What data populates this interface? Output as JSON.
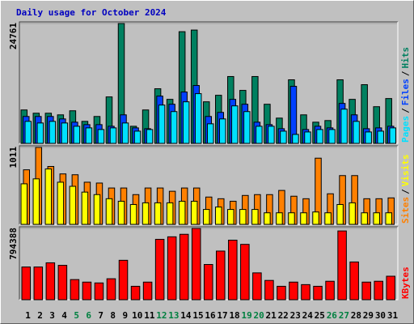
{
  "chart_data": [
    {
      "type": "bar",
      "title": "Daily usage for October 2024",
      "ylim": [
        0,
        24761
      ],
      "yticks": [
        24761
      ],
      "legend_reversed": true,
      "separator": "/",
      "series": [
        {
          "name": "Hits",
          "color": "#008060",
          "values": [
            6905,
            6231,
            6231,
            5894,
            6736,
            4547,
            5557,
            9599,
            24761,
            3536,
            6905,
            11283,
            9094,
            23071,
            23408,
            8588,
            9936,
            13809,
            10946,
            13809,
            8083,
            5220,
            13135,
            5894,
            4378,
            4715,
            13135,
            9094,
            12125,
            7578,
            9262
          ]
        },
        {
          "name": "Files",
          "color": "#0040ff",
          "values": [
            5557,
            5557,
            5557,
            5052,
            4378,
            3873,
            3873,
            3536,
            5894,
            3200,
            3031,
            9767,
            8083,
            10609,
            11956,
            5557,
            6399,
            9094,
            8083,
            4378,
            3873,
            3031,
            11788,
            2863,
            3536,
            3200,
            8252,
            5894,
            3031,
            3200,
            3536
          ]
        },
        {
          "name": "Pages",
          "color": "#00e0ff",
          "values": [
            4547,
            4210,
            4547,
            4210,
            3536,
            3200,
            2863,
            3200,
            4210,
            2526,
            2863,
            7915,
            6568,
            8588,
            10272,
            4042,
            5052,
            7746,
            6568,
            3536,
            3536,
            2526,
            1852,
            2358,
            2863,
            2863,
            7073,
            4547,
            2358,
            2526,
            3200
          ]
        }
      ]
    },
    {
      "type": "bar",
      "ylim": [
        0,
        1011
      ],
      "yticks": [
        1011
      ],
      "legend_reversed": false,
      "separator": "/",
      "series": [
        {
          "name": "Sites",
          "color": "#ff8000",
          "values": [
            717,
            1011,
            761,
            663,
            652,
            554,
            543,
            478,
            478,
            391,
            478,
            478,
            435,
            478,
            478,
            359,
            337,
            304,
            380,
            391,
            391,
            446,
            370,
            337,
            870,
            402,
            641,
            641,
            337,
            337,
            348
          ]
        },
        {
          "name": "Visits",
          "color": "#ffff00",
          "values": [
            533,
            598,
            728,
            554,
            500,
            424,
            391,
            337,
            304,
            261,
            283,
            283,
            283,
            304,
            304,
            196,
            228,
            196,
            196,
            196,
            152,
            152,
            152,
            152,
            163,
            152,
            261,
            283,
            152,
            152,
            152
          ]
        }
      ]
    },
    {
      "type": "bar",
      "ylim": [
        0,
        794388
      ],
      "yticks": [
        794388
      ],
      "legend_reversed": false,
      "categories": [
        1,
        2,
        3,
        4,
        5,
        6,
        7,
        8,
        9,
        10,
        11,
        12,
        13,
        14,
        15,
        16,
        17,
        18,
        19,
        20,
        21,
        22,
        23,
        24,
        25,
        26,
        27,
        28,
        29,
        30,
        31
      ],
      "category_colors": [
        "#000000",
        "#000000",
        "#000000",
        "#000000",
        "#008040",
        "#008040",
        "#000000",
        "#000000",
        "#000000",
        "#000000",
        "#000000",
        "#008040",
        "#008040",
        "#000000",
        "#000000",
        "#000000",
        "#000000",
        "#000000",
        "#008040",
        "#008040",
        "#000000",
        "#000000",
        "#000000",
        "#000000",
        "#000000",
        "#008040",
        "#008040",
        "#000000",
        "#000000",
        "#000000",
        "#000000"
      ],
      "series": [
        {
          "name": "KBytes",
          "color": "#ff0000",
          "values": [
            364494,
            364494,
            411224,
            383186,
            224304,
            196266,
            186920,
            233650,
            439262,
            149536,
            196266,
            672912,
            700950,
            728988,
            794388,
            392532,
            542068,
            663566,
            616836,
            299072,
            214958,
            149536,
            196266,
            168228,
            149536,
            205612,
            766372,
            420570,
            196266,
            205612,
            261688
          ]
        }
      ]
    }
  ]
}
